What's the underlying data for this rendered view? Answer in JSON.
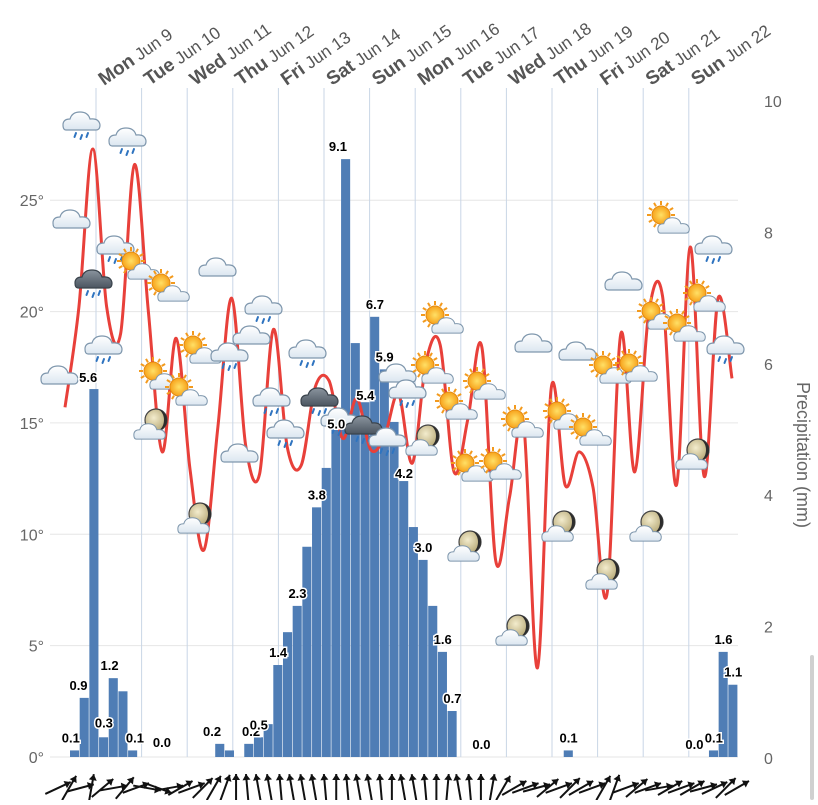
{
  "chart_data": {
    "type": "bar+line",
    "title": "",
    "days": [
      {
        "weekday": "Mon",
        "date": "Jun 9"
      },
      {
        "weekday": "Tue",
        "date": "Jun 10"
      },
      {
        "weekday": "Wed",
        "date": "Jun 11"
      },
      {
        "weekday": "Thu",
        "date": "Jun 12"
      },
      {
        "weekday": "Fri",
        "date": "Jun 13"
      },
      {
        "weekday": "Sat",
        "date": "Jun 14"
      },
      {
        "weekday": "Sun",
        "date": "Jun 15"
      },
      {
        "weekday": "Mon",
        "date": "Jun 16"
      },
      {
        "weekday": "Tue",
        "date": "Jun 17"
      },
      {
        "weekday": "Wed",
        "date": "Jun 18"
      },
      {
        "weekday": "Thu",
        "date": "Jun 19"
      },
      {
        "weekday": "Fri",
        "date": "Jun 20"
      },
      {
        "weekday": "Sat",
        "date": "Jun 21"
      },
      {
        "weekday": "Sun",
        "date": "Jun 22"
      }
    ],
    "left_axis": {
      "ticks": [
        "0°",
        "5°",
        "10°",
        "15°",
        "20°",
        "25°"
      ],
      "range": [
        0,
        29.5
      ]
    },
    "right_axis": {
      "label": "Precipitation (mm)",
      "ticks": [
        "0",
        "2",
        "4",
        "6",
        "8",
        "10"
      ],
      "range": [
        0,
        10
      ]
    },
    "precipitation": {
      "color": "#4f7db5",
      "values": [
        0.1,
        0.9,
        5.6,
        0.3,
        1.2,
        1.0,
        0.1,
        0,
        0,
        0,
        0,
        0,
        0,
        0,
        0,
        0.2,
        0.1,
        0,
        0.2,
        0.3,
        0.5,
        1.4,
        1.9,
        2.3,
        3.2,
        3.8,
        4.4,
        5.0,
        9.1,
        6.3,
        5.4,
        6.7,
        5.9,
        5.1,
        4.2,
        3.5,
        3.0,
        2.3,
        1.6,
        0.7,
        0,
        0,
        0.0,
        0,
        0,
        0,
        0,
        0,
        0,
        0,
        0,
        0.1,
        0,
        0,
        0,
        0,
        0,
        0,
        0,
        0,
        0,
        0,
        0,
        0,
        0.0,
        0,
        0.1,
        1.6,
        1.1
      ],
      "labels": [
        "0.1",
        "0.9",
        "5.6",
        "0.3",
        "1.2",
        "0.1",
        "0.0",
        "0.2",
        "0.2",
        "0.5",
        "1.4",
        "2.3",
        "3.8",
        "5.0",
        "9.1",
        "5.4",
        "6.7",
        "5.9",
        "4.2",
        "3.0",
        "1.6",
        "0.7",
        "0.0",
        "0.1",
        "0.0",
        "0.1",
        "1.6",
        "1.1"
      ]
    },
    "temperature": {
      "color": "#e8403a",
      "unit": "°",
      "values": [
        15.7,
        20.2,
        27.3,
        20.2,
        19.0,
        26.6,
        20.0,
        13.7,
        18.8,
        12.9,
        9.3,
        14.8,
        20.6,
        14.0,
        12.7,
        19.2,
        13.9,
        13.1,
        16.6,
        16.9,
        14.3,
        16.1,
        13.8,
        14.4,
        16.3,
        13.2,
        17.8,
        18.5,
        12.8,
        15.2,
        18.4,
        8.8,
        11.7,
        15.0,
        4.0,
        16.6,
        12.2,
        13.7,
        12.1,
        7.3,
        19.0,
        12.8,
        19.9,
        20.7,
        12.2,
        22.9,
        12.6,
        20.6,
        17.0
      ]
    },
    "grid": true
  }
}
